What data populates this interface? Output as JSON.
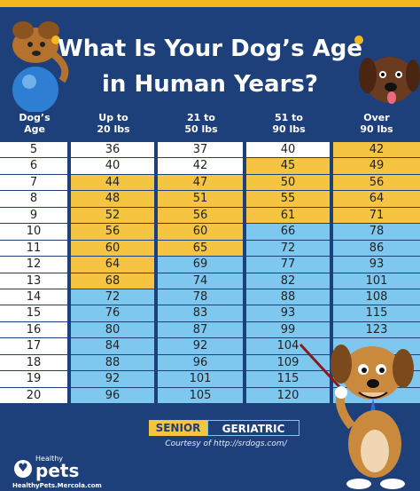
{
  "title_line1": "What Is Your Dog’s Age",
  "title_line2": "in Human Years?",
  "headers": {
    "col0": [
      "Dog’s",
      "Age"
    ],
    "col1": [
      "Up to",
      "20 lbs"
    ],
    "col2": [
      "21 to",
      "50 lbs"
    ],
    "col3": [
      "51 to",
      "90 lbs"
    ],
    "col4": [
      "Over",
      "90 lbs"
    ]
  },
  "rows": [
    {
      "age": "5",
      "v": [
        "36",
        "37",
        "40",
        "42"
      ],
      "c": [
        "w",
        "w",
        "w",
        "y"
      ]
    },
    {
      "age": "6",
      "v": [
        "40",
        "42",
        "45",
        "49"
      ],
      "c": [
        "w",
        "w",
        "y",
        "y"
      ]
    },
    {
      "age": "7",
      "v": [
        "44",
        "47",
        "50",
        "56"
      ],
      "c": [
        "y",
        "y",
        "y",
        "y"
      ]
    },
    {
      "age": "8",
      "v": [
        "48",
        "51",
        "55",
        "64"
      ],
      "c": [
        "y",
        "y",
        "y",
        "y"
      ]
    },
    {
      "age": "9",
      "v": [
        "52",
        "56",
        "61",
        "71"
      ],
      "c": [
        "y",
        "y",
        "y",
        "y"
      ]
    },
    {
      "age": "10",
      "v": [
        "56",
        "60",
        "66",
        "78"
      ],
      "c": [
        "y",
        "y",
        "b",
        "b"
      ]
    },
    {
      "age": "11",
      "v": [
        "60",
        "65",
        "72",
        "86"
      ],
      "c": [
        "y",
        "y",
        "b",
        "b"
      ]
    },
    {
      "age": "12",
      "v": [
        "64",
        "69",
        "77",
        "93"
      ],
      "c": [
        "y",
        "b",
        "b",
        "b"
      ]
    },
    {
      "age": "13",
      "v": [
        "68",
        "74",
        "82",
        "101"
      ],
      "c": [
        "y",
        "b",
        "b",
        "b"
      ]
    },
    {
      "age": "14",
      "v": [
        "72",
        "78",
        "88",
        "108"
      ],
      "c": [
        "b",
        "b",
        "b",
        "b"
      ]
    },
    {
      "age": "15",
      "v": [
        "76",
        "83",
        "93",
        "115"
      ],
      "c": [
        "b",
        "b",
        "b",
        "b"
      ]
    },
    {
      "age": "16",
      "v": [
        "80",
        "87",
        "99",
        "123"
      ],
      "c": [
        "b",
        "b",
        "b",
        "b"
      ]
    },
    {
      "age": "17",
      "v": [
        "84",
        "92",
        "104",
        ""
      ],
      "c": [
        "b",
        "b",
        "b",
        "b"
      ]
    },
    {
      "age": "18",
      "v": [
        "88",
        "96",
        "109",
        ""
      ],
      "c": [
        "b",
        "b",
        "b",
        "b"
      ]
    },
    {
      "age": "19",
      "v": [
        "92",
        "101",
        "115",
        ""
      ],
      "c": [
        "b",
        "b",
        "b",
        "b"
      ]
    },
    {
      "age": "20",
      "v": [
        "96",
        "105",
        "120",
        ""
      ],
      "c": [
        "b",
        "b",
        "b",
        "b"
      ]
    }
  ],
  "legend": {
    "senior": "SENIOR",
    "geriatric": "GERIATRIC"
  },
  "courtesy": "Courtesy of http://srdogs.com/",
  "logo": {
    "healthy": "Healthy",
    "pets": "pets",
    "url": "HealthyPets.Mercola.com"
  },
  "colors": {
    "navy": "#1d3f7a",
    "senior_yellow": "#f5c542",
    "geriatric_blue": "#7ec8f0"
  }
}
